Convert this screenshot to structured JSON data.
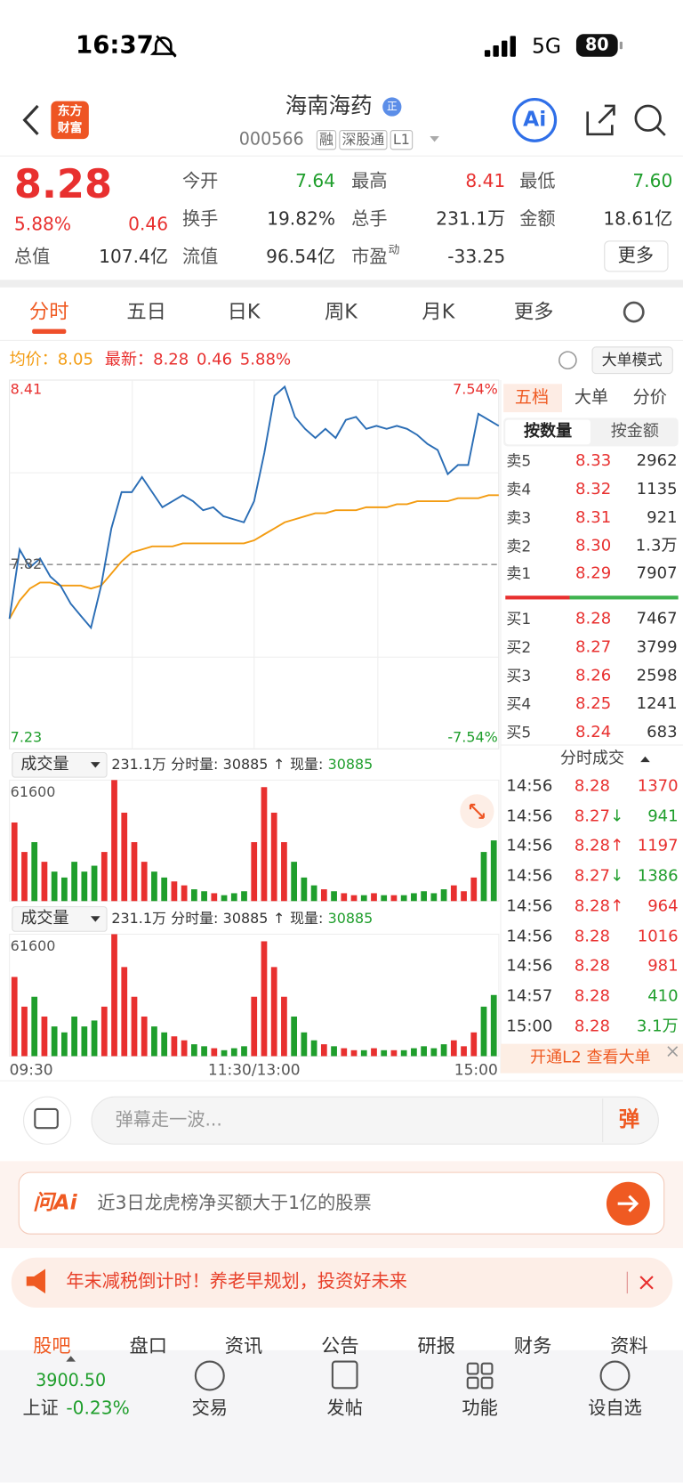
{
  "status": {
    "time": "16:37",
    "network": "5G",
    "battery": "80"
  },
  "header": {
    "logo": [
      "东方",
      "财富"
    ],
    "title": "海南海药",
    "badge": "正",
    "code": "000566",
    "tags": [
      "融",
      "深股通",
      "L1"
    ],
    "ai": "Ai"
  },
  "quote": {
    "price": "8.28",
    "change_pct": "5.88%",
    "change": "0.46",
    "fields": [
      {
        "label": "今开",
        "value": "7.64"
      },
      {
        "label": "最高",
        "value": "8.41"
      },
      {
        "label": "最低",
        "value": "7.60"
      },
      {
        "label": "换手",
        "value": "19.82%"
      },
      {
        "label": "总手",
        "value": "231.1万"
      },
      {
        "label": "金额",
        "value": "18.61亿"
      },
      {
        "label": "总值",
        "value": "107.4亿"
      },
      {
        "label": "流值",
        "value": "96.54亿"
      },
      {
        "label": "市盈",
        "sup": "动",
        "value": "-33.25"
      }
    ],
    "more": "更多"
  },
  "tabs": [
    "分时",
    "五日",
    "日K",
    "周K",
    "月K",
    "更多"
  ],
  "legend": {
    "avg_label": "均价：",
    "avg": "8.05",
    "latest_label": "最新：",
    "latest": "8.28",
    "change": "0.46",
    "change_pct": "5.88%",
    "mode": "大单模式"
  },
  "chart_data": [
    {
      "type": "line",
      "xlim": [
        0,
        48
      ],
      "xticks": [
        {
          "value": 0,
          "label": "09:30"
        },
        {
          "value": 24,
          "label": "11:30/13:00"
        },
        {
          "value": 48,
          "label": "15:00"
        }
      ],
      "ylim": [
        7.23,
        8.41
      ],
      "yticks": [
        8.41,
        7.82,
        7.23
      ],
      "y2lim": [
        -7.54,
        7.54
      ],
      "y2ticks": [
        {
          "value": 7.54,
          "label": "7.54%"
        },
        {
          "value": -7.54,
          "label": "-7.54%"
        }
      ],
      "series": [
        {
          "name": "最新",
          "color": "#2a6db5",
          "values": [
            7.64,
            7.87,
            7.81,
            7.84,
            7.78,
            7.75,
            7.69,
            7.65,
            7.61,
            7.75,
            7.94,
            8.06,
            8.06,
            8.11,
            8.06,
            8.01,
            8.03,
            8.05,
            8.03,
            8.0,
            8.01,
            7.98,
            7.97,
            7.96,
            8.03,
            8.19,
            8.38,
            8.41,
            8.31,
            8.27,
            8.24,
            8.27,
            8.24,
            8.3,
            8.31,
            8.27,
            8.28,
            8.27,
            8.28,
            8.27,
            8.25,
            8.22,
            8.2,
            8.12,
            8.15,
            8.15,
            8.32,
            8.3,
            8.28
          ]
        },
        {
          "name": "均价",
          "color": "#f39c12",
          "values": [
            7.64,
            7.7,
            7.74,
            7.76,
            7.76,
            7.75,
            7.75,
            7.75,
            7.74,
            7.75,
            7.79,
            7.83,
            7.86,
            7.87,
            7.88,
            7.88,
            7.88,
            7.89,
            7.89,
            7.89,
            7.89,
            7.89,
            7.89,
            7.89,
            7.9,
            7.92,
            7.94,
            7.96,
            7.97,
            7.98,
            7.99,
            7.99,
            8.0,
            8.0,
            8.0,
            8.01,
            8.01,
            8.01,
            8.02,
            8.02,
            8.03,
            8.03,
            8.03,
            8.03,
            8.04,
            8.04,
            8.04,
            8.05,
            8.05
          ]
        }
      ]
    },
    {
      "type": "bar",
      "label": "成交量",
      "total": "231.1万",
      "period_label": "分时量:",
      "period_volume": 30885,
      "arrow": "↑",
      "current_label": "现量:",
      "current_volume": 30885,
      "ylim": [
        0,
        61600
      ],
      "yticks": [
        61600
      ],
      "up_color": "#e8302f",
      "down_color": "#1f9e2c",
      "values": [
        40000,
        25000,
        30000,
        20000,
        15000,
        12000,
        20000,
        15000,
        18000,
        25000,
        61600,
        45000,
        30000,
        20000,
        15000,
        12000,
        10000,
        8000,
        6000,
        5000,
        4000,
        3000,
        4000,
        5000,
        30000,
        58000,
        45000,
        30000,
        20000,
        12000,
        8000,
        6000,
        5000,
        4000,
        3000,
        3000,
        4000,
        3000,
        3000,
        3000,
        4000,
        5000,
        4000,
        6000,
        8000,
        5000,
        12000,
        25000,
        30885
      ]
    },
    {
      "type": "bar",
      "label": "成交量",
      "total": "231.1万",
      "period_label": "分时量:",
      "period_volume": 30885,
      "arrow": "↑",
      "current_label": "现量:",
      "current_volume": 30885,
      "ylim": [
        0,
        61600
      ],
      "yticks": [
        61600
      ],
      "up_color": "#e8302f",
      "down_color": "#1f9e2c",
      "values": [
        40000,
        25000,
        30000,
        20000,
        15000,
        12000,
        20000,
        15000,
        18000,
        25000,
        61600,
        45000,
        30000,
        20000,
        15000,
        12000,
        10000,
        8000,
        6000,
        5000,
        4000,
        3000,
        4000,
        5000,
        30000,
        58000,
        45000,
        30000,
        20000,
        12000,
        8000,
        6000,
        5000,
        4000,
        3000,
        3000,
        4000,
        3000,
        3000,
        3000,
        4000,
        5000,
        4000,
        6000,
        8000,
        5000,
        12000,
        25000,
        30885
      ]
    }
  ],
  "order_book": {
    "tabs": [
      "五档",
      "大单",
      "分价"
    ],
    "subtabs": [
      "按数量",
      "按金额"
    ],
    "asks": [
      {
        "label": "卖5",
        "price": "8.33",
        "volume": "2962"
      },
      {
        "label": "卖4",
        "price": "8.32",
        "volume": "1135"
      },
      {
        "label": "卖3",
        "price": "8.31",
        "volume": "921"
      },
      {
        "label": "卖2",
        "price": "8.30",
        "volume": "1.3万"
      },
      {
        "label": "卖1",
        "price": "8.29",
        "volume": "7907"
      }
    ],
    "bids": [
      {
        "label": "买1",
        "price": "8.28",
        "volume": "7467"
      },
      {
        "label": "买2",
        "price": "8.27",
        "volume": "3799"
      },
      {
        "label": "买3",
        "price": "8.26",
        "volume": "2598"
      },
      {
        "label": "买4",
        "price": "8.25",
        "volume": "1241"
      },
      {
        "label": "买5",
        "price": "8.24",
        "volume": "683"
      }
    ]
  },
  "trades": {
    "title": "分时成交",
    "rows": [
      {
        "time": "14:56",
        "price": "8.28",
        "volume": "1370",
        "color": "#e8302f"
      },
      {
        "time": "14:56",
        "price": "8.27",
        "arrow": "↓",
        "volume": "941",
        "color": "#1f9e2c"
      },
      {
        "time": "14:56",
        "price": "8.28",
        "arrow": "↑",
        "volume": "1197",
        "color": "#e8302f"
      },
      {
        "time": "14:56",
        "price": "8.27",
        "arrow": "↓",
        "volume": "1386",
        "color": "#1f9e2c"
      },
      {
        "time": "14:56",
        "price": "8.28",
        "arrow": "↑",
        "volume": "964",
        "color": "#e8302f"
      },
      {
        "time": "14:56",
        "price": "8.28",
        "volume": "1016",
        "color": "#e8302f"
      },
      {
        "time": "14:56",
        "price": "8.28",
        "volume": "981",
        "color": "#e8302f"
      },
      {
        "time": "14:57",
        "price": "8.28",
        "volume": "410",
        "color": "#1f9e2c"
      },
      {
        "time": "15:00",
        "price": "8.28",
        "volume": "3.1万",
        "color": "#1f9e2c"
      }
    ],
    "promo": "开通L2 查看大单"
  },
  "comment": {
    "placeholder": "弹幕走一波...",
    "button": "弹"
  },
  "ai_bar": {
    "brand": "问Ai",
    "text": "近3日龙虎榜净买额大于1亿的股票"
  },
  "notice": {
    "text": "年末减税倒计时！养老早规划，投资好未来"
  },
  "section_tabs": [
    "股吧",
    "盘口",
    "资讯",
    "公告",
    "研报",
    "财务",
    "资料"
  ],
  "nav": {
    "index_value": "3900.50",
    "index_name": "上证",
    "index_change": "-0.23%",
    "items": [
      "交易",
      "发帖",
      "功能",
      "设自选"
    ]
  }
}
